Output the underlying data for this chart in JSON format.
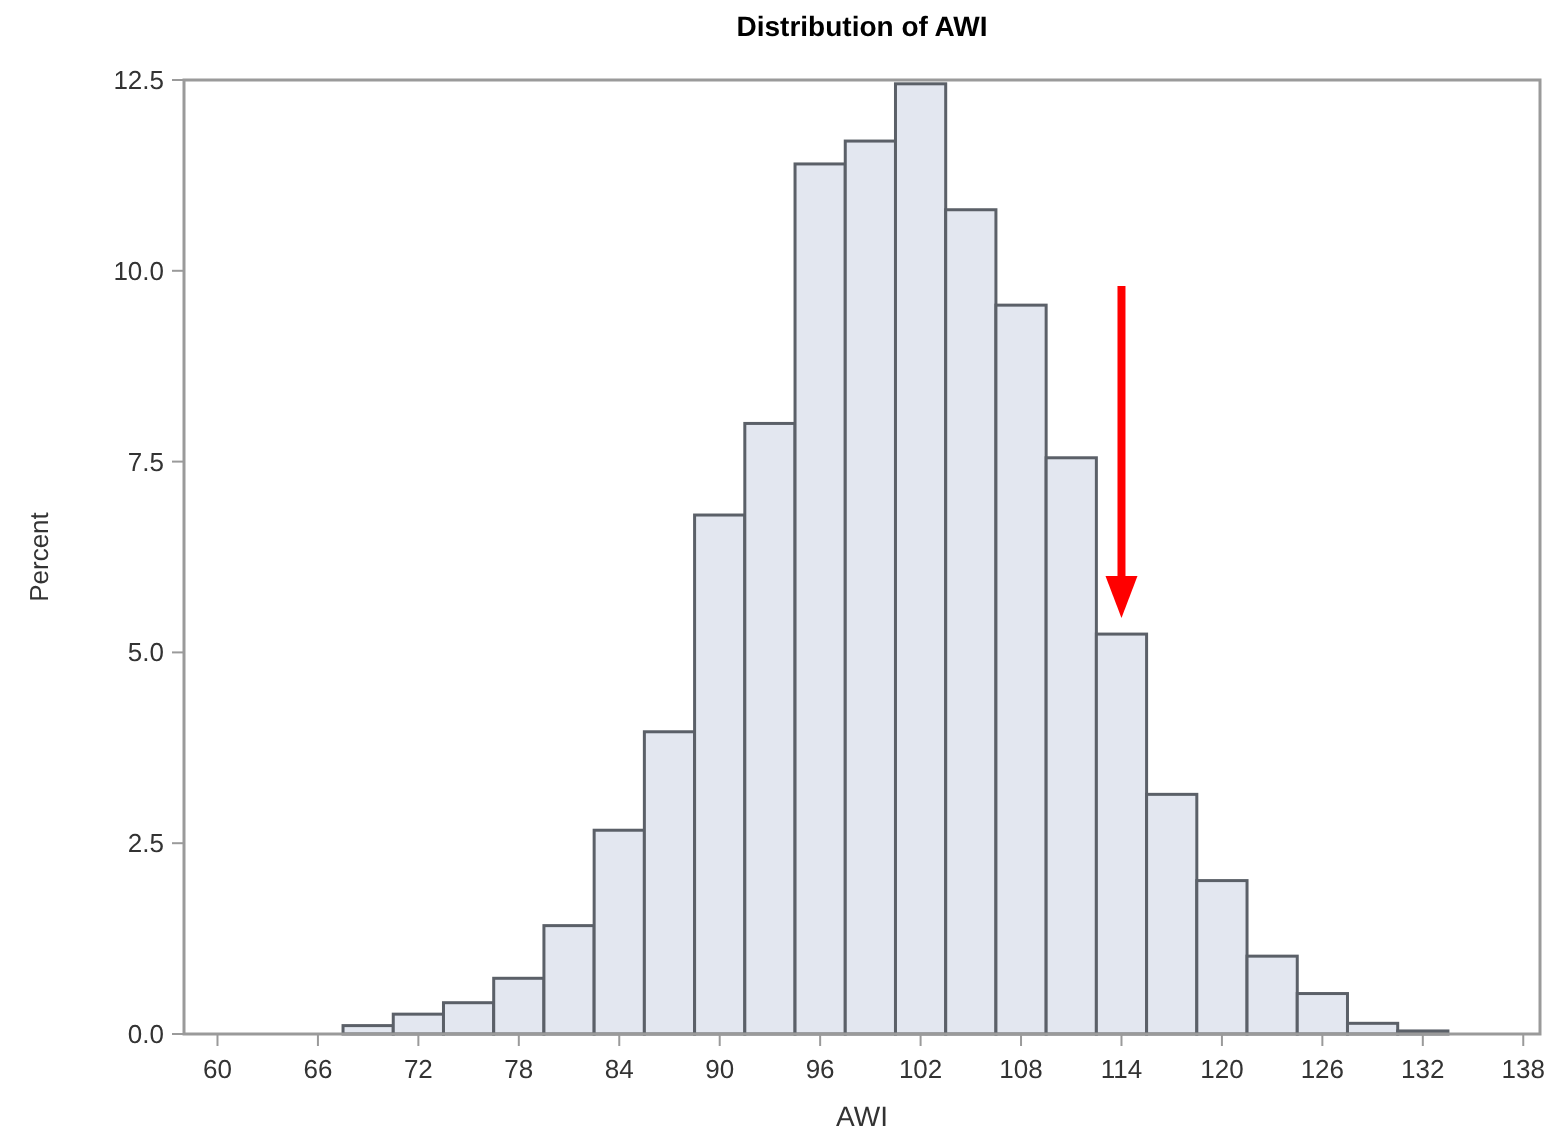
{
  "chart_data": {
    "type": "histogram",
    "title": "Distribution of AWI",
    "xlabel": "AWI",
    "ylabel": "Percent",
    "bins": [
      67.5,
      70.5,
      73.5,
      76.5,
      79.5,
      82.5,
      85.5,
      88.5,
      91.5,
      94.5,
      97.5,
      100.5,
      103.5,
      106.5,
      109.5,
      112.5,
      115.5,
      118.5,
      121.5,
      124.5,
      127.5,
      130.5,
      133.5
    ],
    "values": [
      0.11,
      0.26,
      0.41,
      0.73,
      1.42,
      2.67,
      3.96,
      6.8,
      8.0,
      11.4,
      11.7,
      12.45,
      10.8,
      9.55,
      7.55,
      5.24,
      3.14,
      2.01,
      1.02,
      0.53,
      0.14,
      0.04
    ],
    "color": "#e3e7f0",
    "xlim": [
      58,
      139
    ],
    "xticks": [
      60,
      66,
      72,
      78,
      84,
      90,
      96,
      102,
      108,
      114,
      120,
      126,
      132,
      138
    ],
    "ylim": [
      0,
      12.5
    ],
    "yticks": [
      {
        "value": 0,
        "label": "0.0"
      },
      {
        "value": 2.5,
        "label": "2.5"
      },
      {
        "value": 5,
        "label": "5.0"
      },
      {
        "value": 7.5,
        "label": "7.5"
      },
      {
        "value": 10,
        "label": "10.0"
      },
      {
        "value": 12.5,
        "label": "12.5"
      }
    ],
    "grid": false
  }
}
